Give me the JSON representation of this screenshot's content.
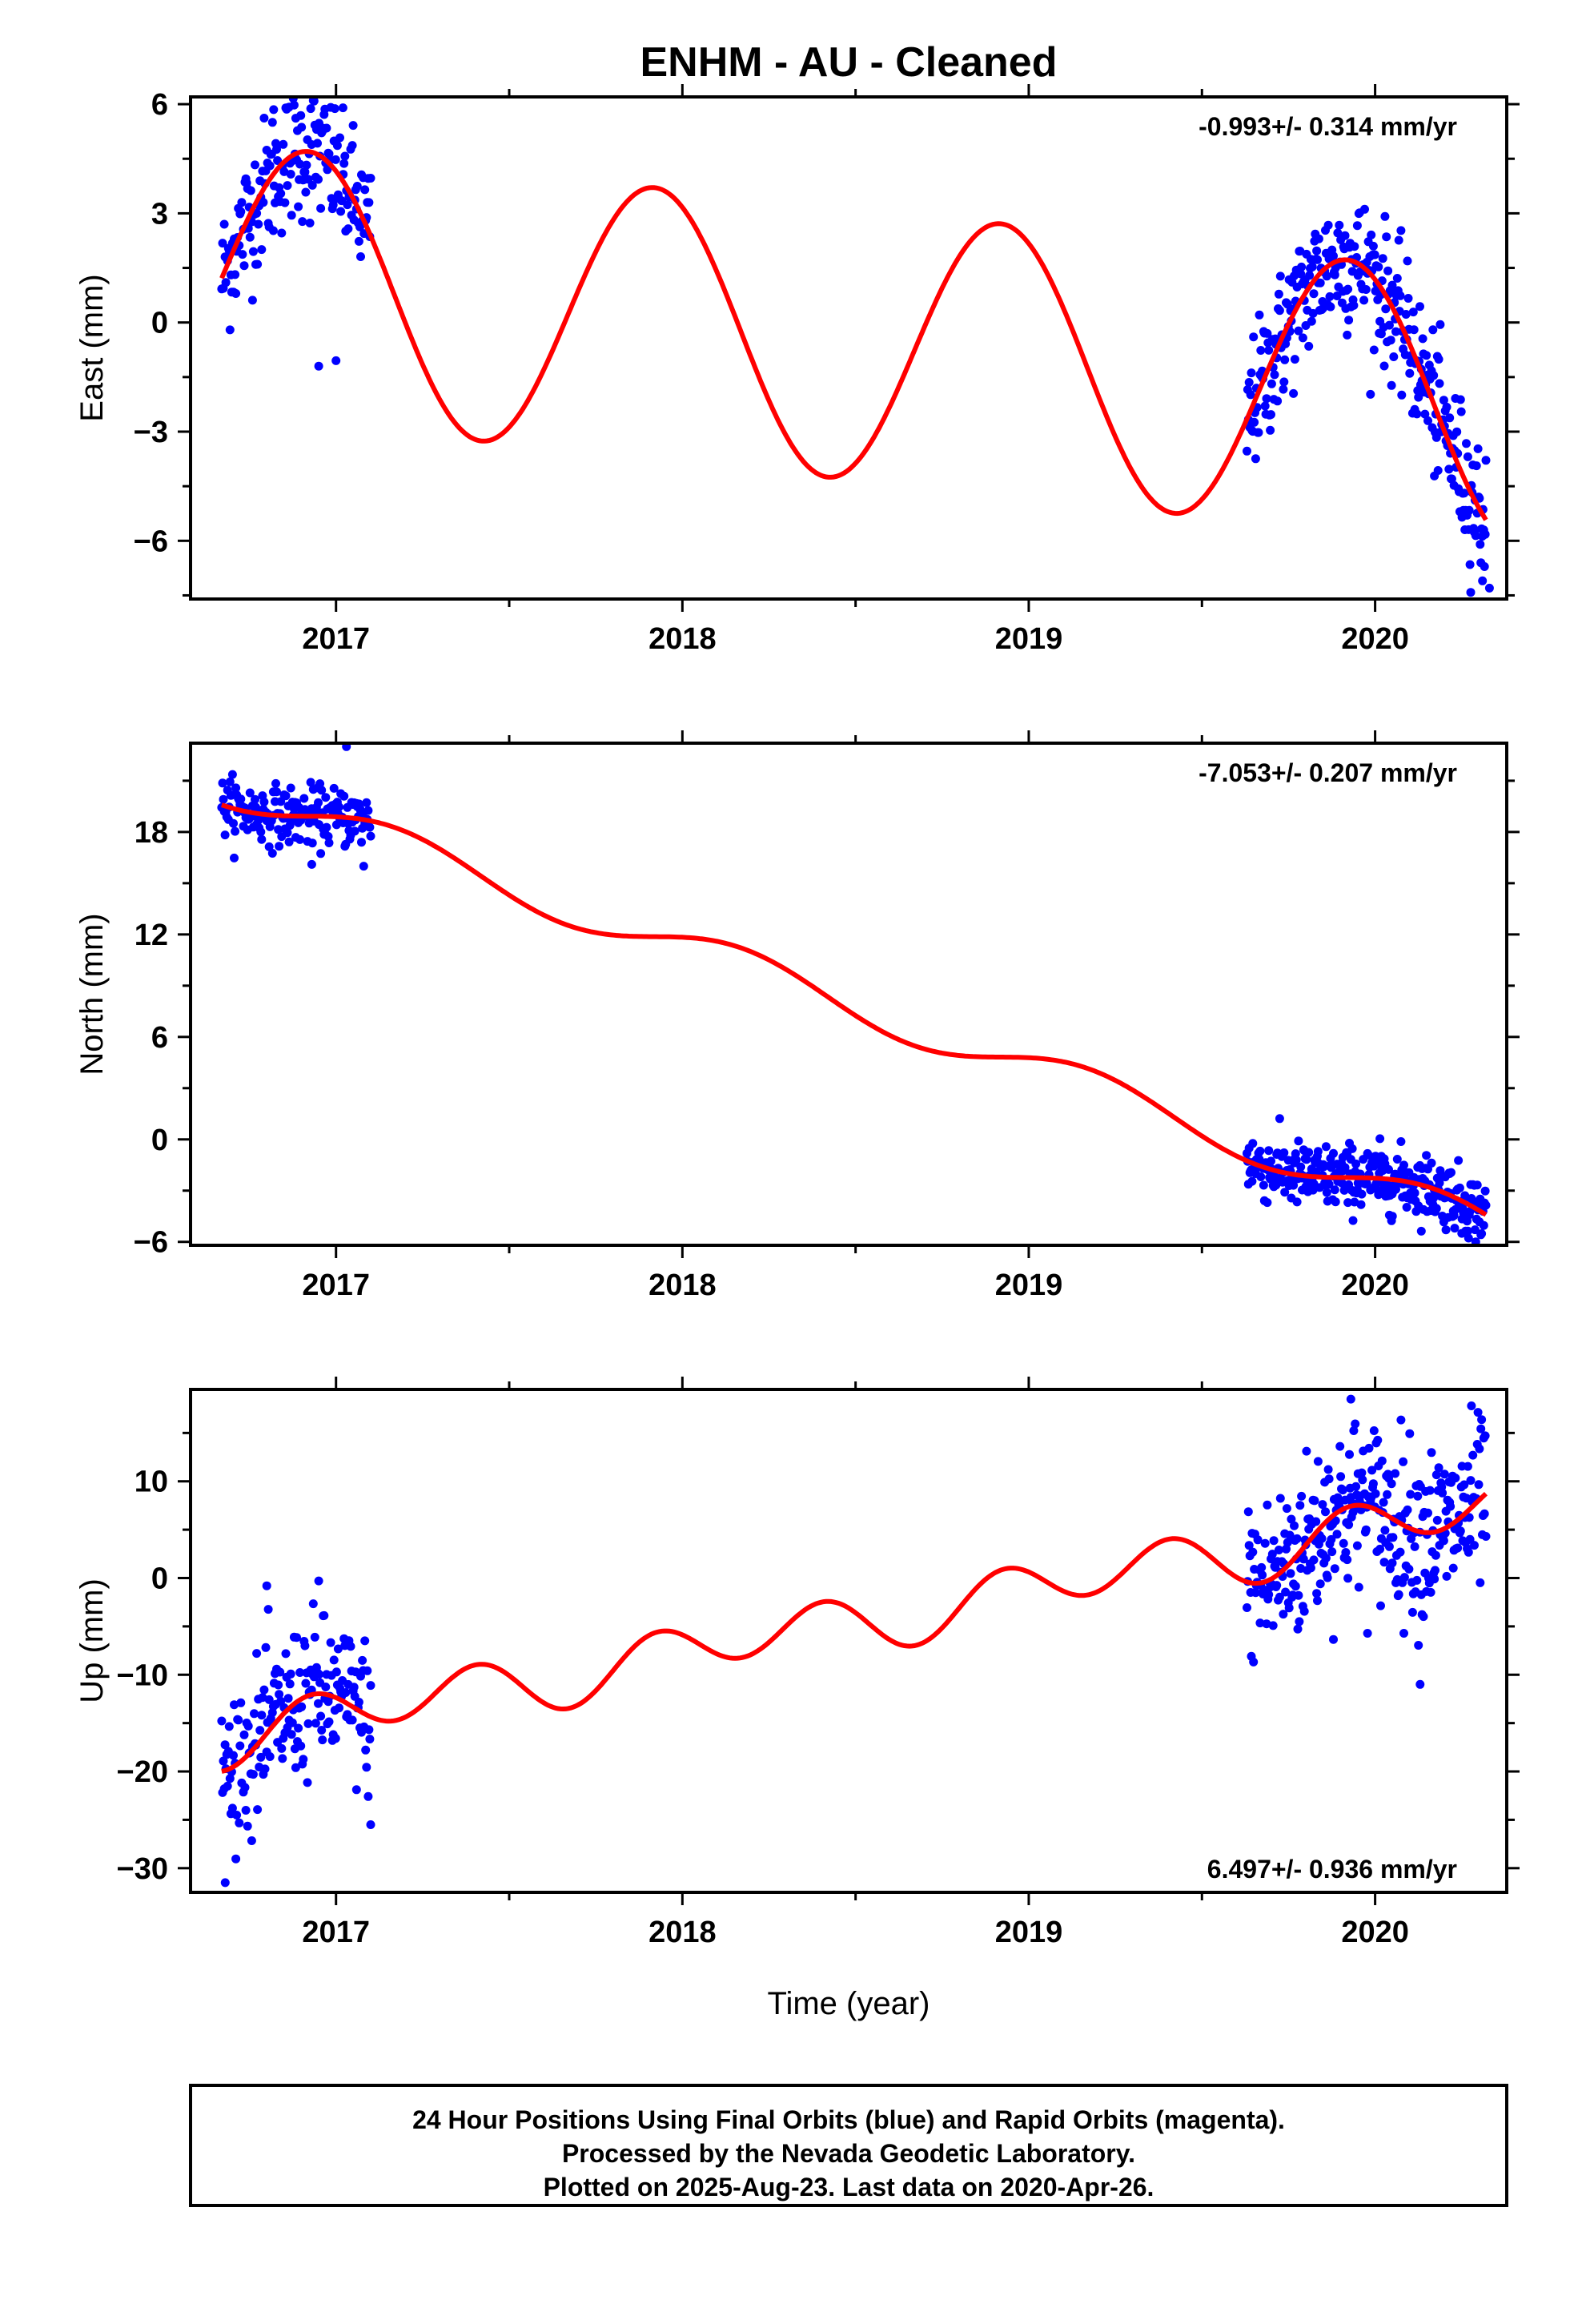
{
  "title": "ENHM  - AU - Cleaned",
  "xlabel": "Time (year)",
  "footer": {
    "lines": [
      "24 Hour Positions Using Final Orbits (blue) and Rapid Orbits (magenta).",
      "Processed by the Nevada Geodetic Laboratory.",
      "Plotted on 2025-Aug-23. Last data on 2020-Apr-26."
    ]
  },
  "colors": {
    "points": "#0000ff",
    "fit": "#ff0000",
    "frame": "#000000"
  },
  "chart_data": [
    {
      "type": "scatter",
      "name": "east",
      "ylabel": "East (mm)",
      "rate": "-0.993+/- 0.314 mm/yr",
      "rate_position": "top-right",
      "xlim": [
        2016.58,
        2020.38
      ],
      "ylim": [
        -7.6,
        6.2
      ],
      "xticks": [
        2017,
        2018,
        2019,
        2020
      ],
      "yticks": [
        -6,
        -3,
        0,
        3,
        6
      ],
      "ytick_labels": [
        "−6",
        "−3",
        "0",
        "3",
        "6"
      ],
      "segments": [
        {
          "from": 2016.67,
          "to": 2017.1,
          "n": 180,
          "sd": 0.95
        },
        {
          "from": 2019.63,
          "to": 2020.32,
          "n": 330,
          "sd": 0.95
        }
      ],
      "model": {
        "offset": -0.6,
        "rate": -0.993,
        "t0": 2018.5,
        "sin1": 0.0,
        "cos1": 3.73,
        "sin2": 0.0,
        "cos2": 0.0
      },
      "fit": {
        "from": 2016.67,
        "to": 2020.32
      },
      "outliers": [
        [
          2016.82,
          5.85
        ],
        [
          2017.02,
          5.9
        ],
        [
          2016.95,
          -1.2
        ],
        [
          2017.0,
          -1.05
        ],
        [
          2020.33,
          -7.3
        ],
        [
          2020.31,
          -7.1
        ]
      ]
    },
    {
      "type": "scatter",
      "name": "north",
      "ylabel": "North (mm)",
      "rate": "-7.053+/- 0.207 mm/yr",
      "rate_position": "top-right",
      "xlim": [
        2016.58,
        2020.38
      ],
      "ylim": [
        -6.2,
        23.2
      ],
      "xticks": [
        2017,
        2018,
        2019,
        2020
      ],
      "yticks": [
        -6,
        0,
        6,
        12,
        18
      ],
      "ytick_labels": [
        "−6",
        "0",
        "6",
        "12",
        "18"
      ],
      "segments": [
        {
          "from": 2016.67,
          "to": 2017.1,
          "n": 180,
          "sd": 0.85
        },
        {
          "from": 2019.63,
          "to": 2020.32,
          "n": 330,
          "sd": 0.95
        }
      ],
      "model": {
        "offset": 7.78,
        "rate": -7.053,
        "t0": 2018.5,
        "sin1": 1.1,
        "cos1": 0.0,
        "sin2": 0.0,
        "cos2": 0.0
      },
      "fit": {
        "from": 2016.67,
        "to": 2020.32
      },
      "outliers": [
        [
          2017.03,
          23.0
        ],
        [
          2016.93,
          16.1
        ],
        [
          2017.08,
          16.0
        ],
        [
          2020.25,
          -5.5
        ],
        [
          2020.05,
          -4.5
        ]
      ]
    },
    {
      "type": "scatter",
      "name": "up",
      "ylabel": "Up (mm)",
      "rate": "6.497+/- 0.936 mm/yr",
      "rate_position": "bottom-right",
      "xlim": [
        2016.58,
        2020.38
      ],
      "ylim": [
        -32.5,
        19.5
      ],
      "xticks": [
        2017,
        2018,
        2019,
        2020
      ],
      "yticks": [
        -30,
        -20,
        -10,
        0,
        10
      ],
      "ytick_labels": [
        "−30",
        "−20",
        "−10",
        "0",
        "10"
      ],
      "segments": [
        {
          "from": 2016.67,
          "to": 2017.1,
          "n": 180,
          "sd": 4.0
        },
        {
          "from": 2019.63,
          "to": 2020.32,
          "n": 330,
          "sd": 4.5
        }
      ],
      "model": {
        "offset": -4.5,
        "rate": 6.497,
        "t0": 2018.5,
        "sin1": 1.0,
        "cos1": 0.0,
        "sin2": 0.0,
        "cos2": 2.6
      },
      "fit": {
        "from": 2016.67,
        "to": 2020.32
      },
      "outliers": [
        [
          2016.8,
          -0.8
        ],
        [
          2016.95,
          -0.3
        ],
        [
          2016.68,
          -31.5
        ],
        [
          2017.1,
          -25.5
        ],
        [
          2019.93,
          18.5
        ],
        [
          2020.13,
          -11.0
        ]
      ]
    }
  ]
}
